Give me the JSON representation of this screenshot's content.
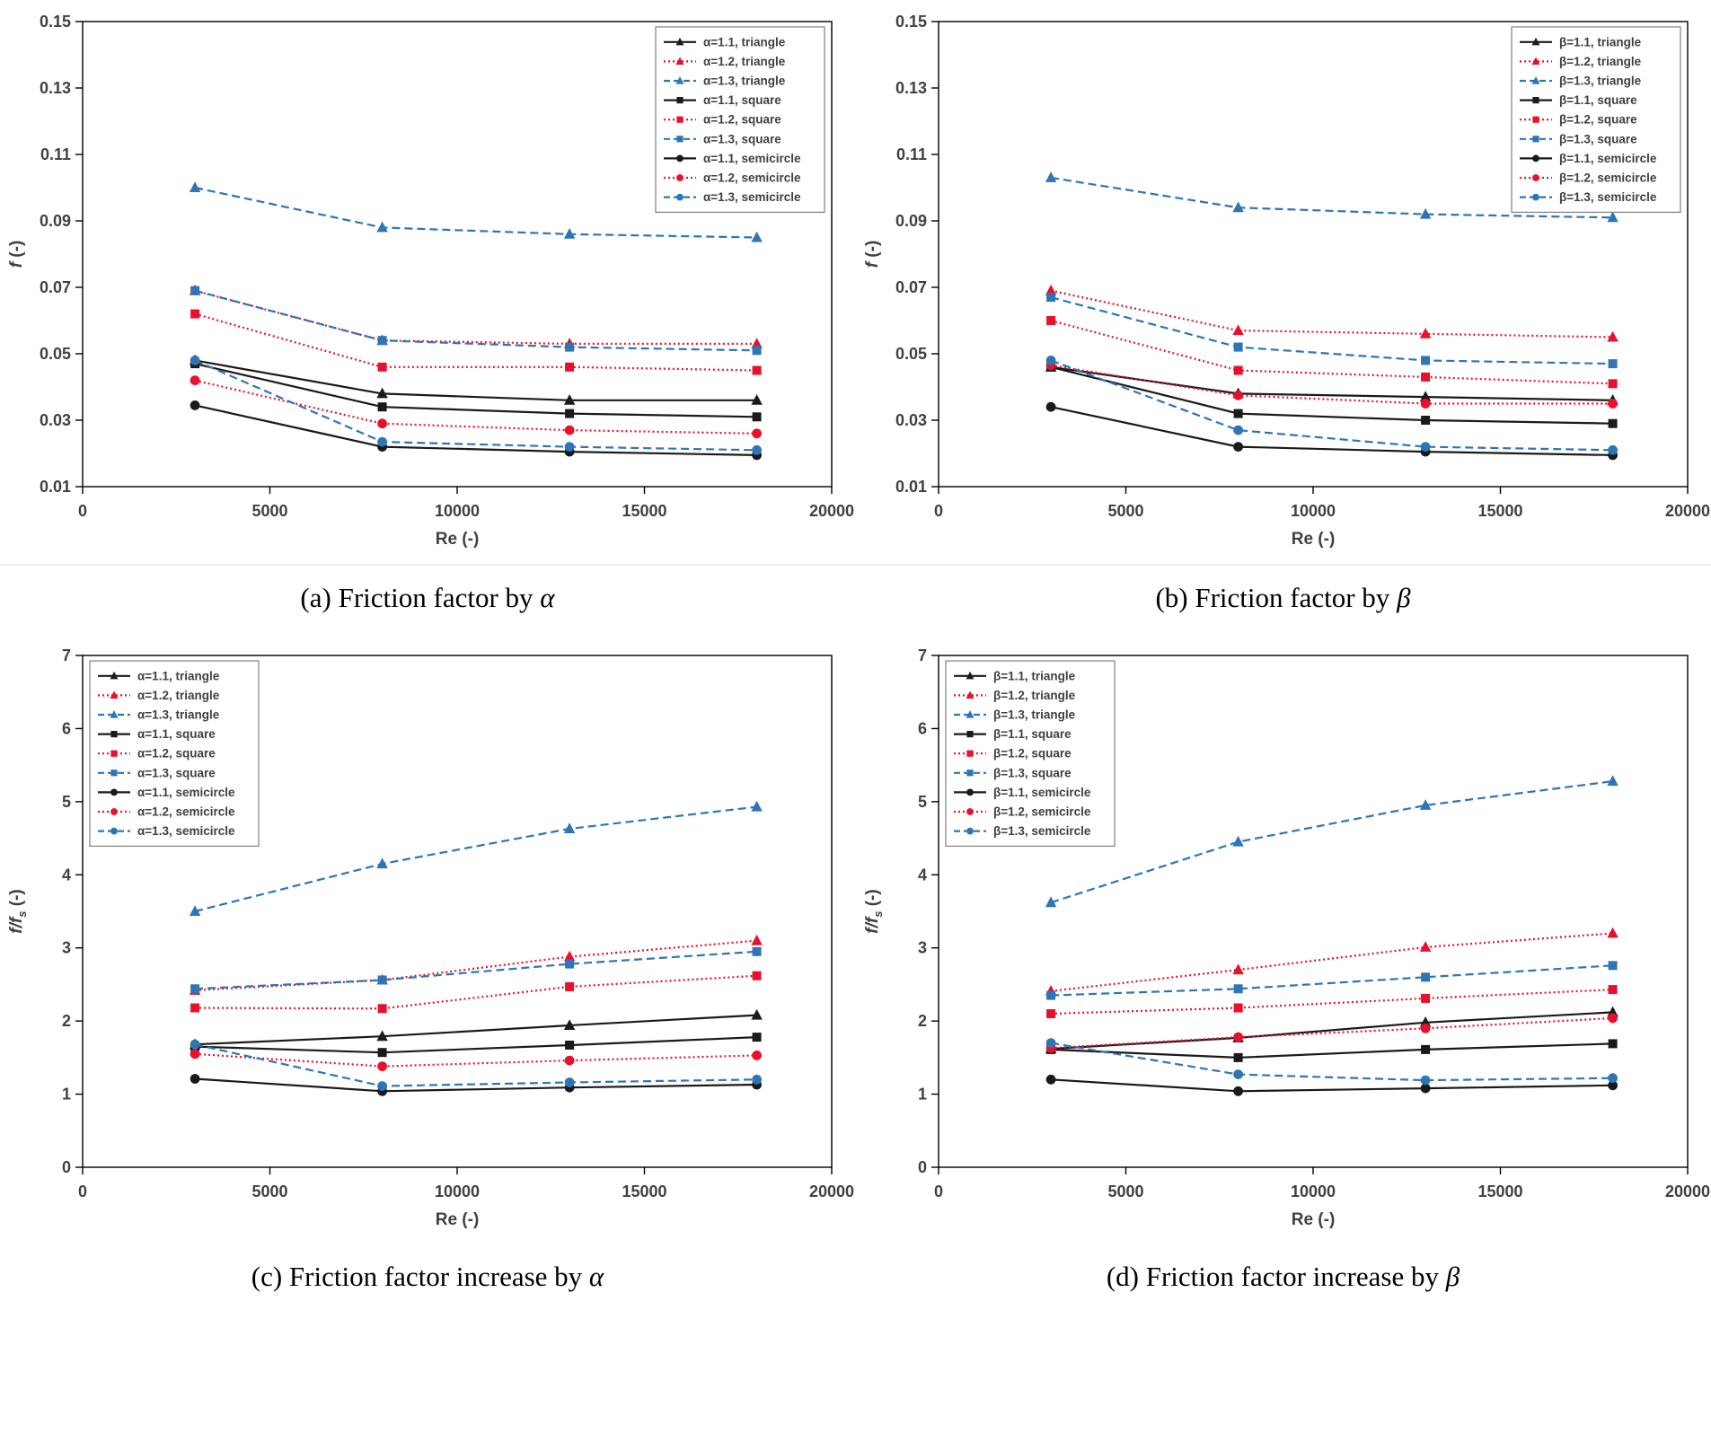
{
  "palette": {
    "black": "#1a1a1a",
    "red": "#e8112d",
    "blue": "#2e75b6",
    "axis": "#000000",
    "tick_text": "#404040",
    "legend_border": "#808080",
    "background": "#ffffff"
  },
  "chart_data": [
    {
      "id": "a",
      "type": "line",
      "caption_text": "(a) Friction factor by ",
      "caption_symbol": "α",
      "xlabel": "Re (-)",
      "ylabel": {
        "main": "f",
        "sub": "",
        "suffix": " (-)"
      },
      "xlim": [
        0,
        20000
      ],
      "xticks": [
        0,
        5000,
        10000,
        15000,
        20000
      ],
      "xtick_labels": [
        "0",
        "5000",
        "10000",
        "15000",
        "20000"
      ],
      "ylim": [
        0.01,
        0.15
      ],
      "yticks": [
        0.01,
        0.03,
        0.05,
        0.07,
        0.09,
        0.11,
        0.13,
        0.15
      ],
      "ytick_labels": [
        "0.01",
        "0.03",
        "0.05",
        "0.07",
        "0.09",
        "0.11",
        "0.13",
        "0.15"
      ],
      "grid": false,
      "legend_position": "top-right",
      "x": [
        3000,
        8000,
        13000,
        18000
      ],
      "series": [
        {
          "label": "α=1.1, triangle",
          "color": "black",
          "line": "solid",
          "marker": "triangle",
          "values": [
            0.048,
            0.038,
            0.036,
            0.036
          ]
        },
        {
          "label": "α=1.2, triangle",
          "color": "red",
          "line": "dotted",
          "marker": "triangle",
          "values": [
            0.069,
            0.054,
            0.053,
            0.053
          ]
        },
        {
          "label": "α=1.3, triangle",
          "color": "blue",
          "line": "dashed",
          "marker": "triangle",
          "values": [
            0.1,
            0.088,
            0.086,
            0.085
          ]
        },
        {
          "label": "α=1.1, square",
          "color": "black",
          "line": "solid",
          "marker": "square",
          "values": [
            0.047,
            0.034,
            0.032,
            0.031
          ]
        },
        {
          "label": "α=1.2, square",
          "color": "red",
          "line": "dotted",
          "marker": "square",
          "values": [
            0.062,
            0.046,
            0.046,
            0.045
          ]
        },
        {
          "label": "α=1.3, square",
          "color": "blue",
          "line": "dashed",
          "marker": "square",
          "values": [
            0.069,
            0.054,
            0.052,
            0.051
          ]
        },
        {
          "label": "α=1.1, semicircle",
          "color": "black",
          "line": "solid",
          "marker": "circle",
          "values": [
            0.0345,
            0.022,
            0.0205,
            0.0195
          ]
        },
        {
          "label": "α=1.2, semicircle",
          "color": "red",
          "line": "dotted",
          "marker": "circle",
          "values": [
            0.042,
            0.029,
            0.027,
            0.026
          ]
        },
        {
          "label": "α=1.3, semicircle",
          "color": "blue",
          "line": "dashed",
          "marker": "circle",
          "values": [
            0.048,
            0.0235,
            0.022,
            0.021
          ]
        }
      ]
    },
    {
      "id": "b",
      "type": "line",
      "caption_text": "(b) Friction factor by ",
      "caption_symbol": "β",
      "xlabel": "Re (-)",
      "ylabel": {
        "main": "f",
        "sub": "",
        "suffix": " (-)"
      },
      "xlim": [
        0,
        20000
      ],
      "xticks": [
        0,
        5000,
        10000,
        15000,
        20000
      ],
      "xtick_labels": [
        "0",
        "5000",
        "10000",
        "15000",
        "20000"
      ],
      "ylim": [
        0.01,
        0.15
      ],
      "yticks": [
        0.01,
        0.03,
        0.05,
        0.07,
        0.09,
        0.11,
        0.13,
        0.15
      ],
      "ytick_labels": [
        "0.01",
        "0.03",
        "0.05",
        "0.07",
        "0.09",
        "0.11",
        "0.13",
        "0.15"
      ],
      "grid": false,
      "legend_position": "top-right",
      "x": [
        3000,
        8000,
        13000,
        18000
      ],
      "series": [
        {
          "label": "β=1.1, triangle",
          "color": "black",
          "line": "solid",
          "marker": "triangle",
          "values": [
            0.046,
            0.038,
            0.037,
            0.036
          ]
        },
        {
          "label": "β=1.2, triangle",
          "color": "red",
          "line": "dotted",
          "marker": "triangle",
          "values": [
            0.069,
            0.057,
            0.056,
            0.055
          ]
        },
        {
          "label": "β=1.3, triangle",
          "color": "blue",
          "line": "dashed",
          "marker": "triangle",
          "values": [
            0.103,
            0.094,
            0.092,
            0.091
          ]
        },
        {
          "label": "β=1.1, square",
          "color": "black",
          "line": "solid",
          "marker": "square",
          "values": [
            0.046,
            0.032,
            0.03,
            0.029
          ]
        },
        {
          "label": "β=1.2, square",
          "color": "red",
          "line": "dotted",
          "marker": "square",
          "values": [
            0.06,
            0.045,
            0.043,
            0.041
          ]
        },
        {
          "label": "β=1.3, square",
          "color": "blue",
          "line": "dashed",
          "marker": "square",
          "values": [
            0.067,
            0.052,
            0.048,
            0.047
          ]
        },
        {
          "label": "β=1.1, semicircle",
          "color": "black",
          "line": "solid",
          "marker": "circle",
          "values": [
            0.034,
            0.022,
            0.0205,
            0.0195
          ]
        },
        {
          "label": "β=1.2, semicircle",
          "color": "red",
          "line": "dotted",
          "marker": "circle",
          "values": [
            0.0465,
            0.0375,
            0.035,
            0.035
          ]
        },
        {
          "label": "β=1.3, semicircle",
          "color": "blue",
          "line": "dashed",
          "marker": "circle",
          "values": [
            0.048,
            0.027,
            0.022,
            0.021
          ]
        }
      ]
    },
    {
      "id": "c",
      "type": "line",
      "caption_text": "(c) Friction factor increase by ",
      "caption_symbol": "α",
      "xlabel": "Re (-)",
      "ylabel": {
        "main": "f/f",
        "sub": "s",
        "suffix": " (-)"
      },
      "xlim": [
        0,
        20000
      ],
      "xticks": [
        0,
        5000,
        10000,
        15000,
        20000
      ],
      "xtick_labels": [
        "0",
        "5000",
        "10000",
        "15000",
        "20000"
      ],
      "ylim": [
        0,
        7
      ],
      "yticks": [
        0,
        1,
        2,
        3,
        4,
        5,
        6,
        7
      ],
      "ytick_labels": [
        "0",
        "1",
        "2",
        "3",
        "4",
        "5",
        "6",
        "7"
      ],
      "grid": false,
      "legend_position": "top-left",
      "x": [
        3000,
        8000,
        13000,
        18000
      ],
      "series": [
        {
          "label": "α=1.1, triangle",
          "color": "black",
          "line": "solid",
          "marker": "triangle",
          "values": [
            1.68,
            1.79,
            1.94,
            2.08
          ]
        },
        {
          "label": "α=1.2, triangle",
          "color": "red",
          "line": "dotted",
          "marker": "triangle",
          "values": [
            2.42,
            2.56,
            2.88,
            3.1
          ]
        },
        {
          "label": "α=1.3, triangle",
          "color": "blue",
          "line": "dashed",
          "marker": "triangle",
          "values": [
            3.5,
            4.15,
            4.63,
            4.93
          ]
        },
        {
          "label": "α=1.1, square",
          "color": "black",
          "line": "solid",
          "marker": "square",
          "values": [
            1.65,
            1.57,
            1.67,
            1.78
          ]
        },
        {
          "label": "α=1.2, square",
          "color": "red",
          "line": "dotted",
          "marker": "square",
          "values": [
            2.18,
            2.17,
            2.47,
            2.62
          ]
        },
        {
          "label": "α=1.3, square",
          "color": "blue",
          "line": "dashed",
          "marker": "square",
          "values": [
            2.44,
            2.56,
            2.78,
            2.95
          ]
        },
        {
          "label": "α=1.1, semicircle",
          "color": "black",
          "line": "solid",
          "marker": "circle",
          "values": [
            1.21,
            1.04,
            1.09,
            1.13
          ]
        },
        {
          "label": "α=1.2, semicircle",
          "color": "red",
          "line": "dotted",
          "marker": "circle",
          "values": [
            1.55,
            1.38,
            1.46,
            1.53
          ]
        },
        {
          "label": "α=1.3, semicircle",
          "color": "blue",
          "line": "dashed",
          "marker": "circle",
          "values": [
            1.68,
            1.11,
            1.16,
            1.2
          ]
        }
      ]
    },
    {
      "id": "d",
      "type": "line",
      "caption_text": "(d) Friction factor increase by ",
      "caption_symbol": "β",
      "xlabel": "Re (-)",
      "ylabel": {
        "main": "f/f",
        "sub": "s",
        "suffix": " (-)"
      },
      "xlim": [
        0,
        20000
      ],
      "xticks": [
        0,
        5000,
        10000,
        15000,
        20000
      ],
      "xtick_labels": [
        "0",
        "5000",
        "10000",
        "15000",
        "20000"
      ],
      "ylim": [
        0,
        7
      ],
      "yticks": [
        0,
        1,
        2,
        3,
        4,
        5,
        6,
        7
      ],
      "ytick_labels": [
        "0",
        "1",
        "2",
        "3",
        "4",
        "5",
        "6",
        "7"
      ],
      "grid": false,
      "legend_position": "top-left",
      "x": [
        3000,
        8000,
        13000,
        18000
      ],
      "series": [
        {
          "label": "β=1.1, triangle",
          "color": "black",
          "line": "solid",
          "marker": "triangle",
          "values": [
            1.62,
            1.77,
            1.98,
            2.12
          ]
        },
        {
          "label": "β=1.2, triangle",
          "color": "red",
          "line": "dotted",
          "marker": "triangle",
          "values": [
            2.41,
            2.7,
            3.01,
            3.2
          ]
        },
        {
          "label": "β=1.3, triangle",
          "color": "blue",
          "line": "dashed",
          "marker": "triangle",
          "values": [
            3.62,
            4.45,
            4.95,
            5.28
          ]
        },
        {
          "label": "β=1.1, square",
          "color": "black",
          "line": "solid",
          "marker": "square",
          "values": [
            1.61,
            1.5,
            1.61,
            1.69
          ]
        },
        {
          "label": "β=1.2, square",
          "color": "red",
          "line": "dotted",
          "marker": "square",
          "values": [
            2.1,
            2.18,
            2.31,
            2.43
          ]
        },
        {
          "label": "β=1.3, square",
          "color": "blue",
          "line": "dashed",
          "marker": "square",
          "values": [
            2.35,
            2.44,
            2.6,
            2.76
          ]
        },
        {
          "label": "β=1.1, semicircle",
          "color": "black",
          "line": "solid",
          "marker": "circle",
          "values": [
            1.2,
            1.04,
            1.08,
            1.12
          ]
        },
        {
          "label": "β=1.2, semicircle",
          "color": "red",
          "line": "dotted",
          "marker": "circle",
          "values": [
            1.63,
            1.78,
            1.9,
            2.04
          ]
        },
        {
          "label": "β=1.3, semicircle",
          "color": "blue",
          "line": "dashed",
          "marker": "circle",
          "values": [
            1.7,
            1.27,
            1.19,
            1.22
          ]
        }
      ]
    }
  ]
}
